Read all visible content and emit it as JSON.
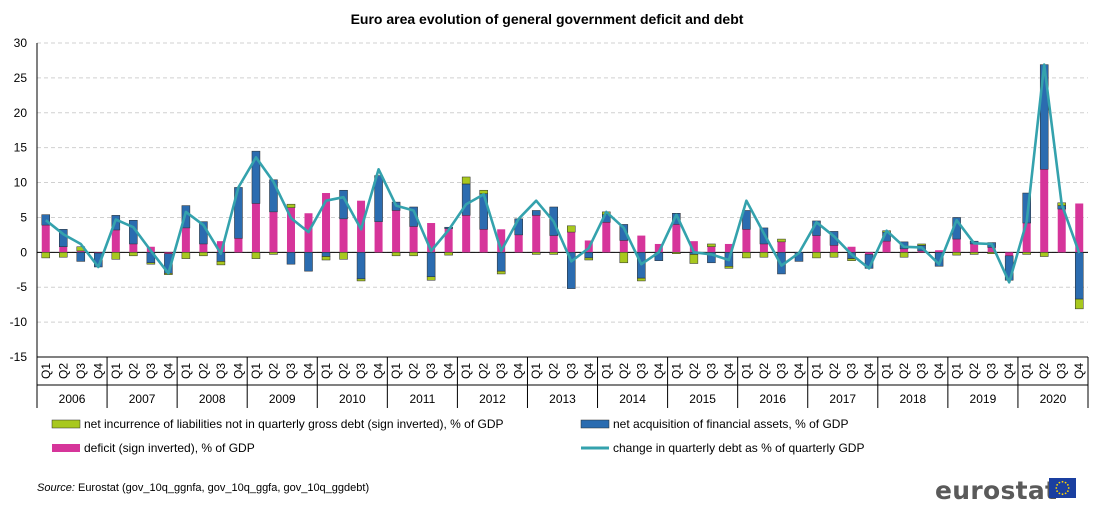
{
  "chart_data": {
    "type": "bar",
    "title": "Euro area evolution of general government deficit and debt",
    "xlabel": "",
    "ylabel": "",
    "ylim": [
      -15,
      30
    ],
    "yticks": [
      30,
      25,
      20,
      15,
      10,
      5,
      0,
      -5,
      -10,
      -15
    ],
    "grid": true,
    "legend_position": "bottom",
    "years": [
      "2006",
      "2007",
      "2008",
      "2009",
      "2010",
      "2011",
      "2012",
      "2013",
      "2014",
      "2015",
      "2016",
      "2017",
      "2018",
      "2019",
      "2020"
    ],
    "quarters": [
      "Q1",
      "Q2",
      "Q3",
      "Q4"
    ],
    "series": [
      {
        "name": "net incurrence of liabilities not in quarterly gross debt (sign inverted), % of GDP",
        "kind": "bar",
        "color": "#a8c81e",
        "values": [
          -0.8,
          -0.7,
          0.6,
          0.0,
          -1.0,
          -0.5,
          -0.2,
          -0.2,
          -0.9,
          -0.5,
          -0.5,
          0.0,
          -0.9,
          -0.3,
          0.5,
          0.0,
          -0.5,
          -1.0,
          -0.3,
          0.0,
          -0.5,
          -0.5,
          -0.5,
          -0.4,
          1.0,
          0.5,
          -0.4,
          0.0,
          -0.3,
          -0.3,
          0.9,
          -0.3,
          0.4,
          -1.5,
          -0.4,
          0.0,
          -0.2,
          -1.3,
          0.4,
          -0.3,
          -0.8,
          -0.7,
          0.4,
          0.0,
          -0.8,
          -0.7,
          -0.3,
          0.0,
          0.2,
          -0.7,
          0.2,
          0.0,
          -0.4,
          -0.3,
          -0.2,
          0.0,
          -0.3,
          -0.6,
          0.4,
          -1.4
        ]
      },
      {
        "name": "net acquisition of financial assets, % of GDP",
        "kind": "bar",
        "color": "#2b6cb0",
        "values": [
          1.5,
          2.5,
          -1.3,
          -2.0,
          2.1,
          3.4,
          -1.5,
          -2.8,
          3.2,
          3.2,
          -1.3,
          7.3,
          7.5,
          4.6,
          -1.7,
          -2.7,
          -0.6,
          4.1,
          -3.8,
          6.6,
          1.2,
          2.8,
          -3.5,
          0.2,
          4.5,
          5.1,
          -2.7,
          2.3,
          0.7,
          4.1,
          -5.2,
          -0.8,
          1.1,
          2.3,
          -3.7,
          -1.2,
          1.6,
          -0.3,
          -1.5,
          -2.0,
          2.7,
          2.3,
          -3.1,
          -1.3,
          2.1,
          2.0,
          -0.9,
          -2.0,
          1.3,
          1.0,
          0.8,
          -2.0,
          3.1,
          0.4,
          0.7,
          -3.5,
          4.3,
          15.0,
          0.5,
          -6.7
        ]
      },
      {
        "name": "deficit (sign inverted), % of GDP",
        "kind": "bar",
        "color": "#d6359a",
        "values": [
          3.9,
          0.8,
          0.2,
          -0.1,
          3.2,
          1.2,
          0.8,
          -0.2,
          3.5,
          1.2,
          1.6,
          2.0,
          7.0,
          5.8,
          6.4,
          5.6,
          8.5,
          4.8,
          7.4,
          4.4,
          6.0,
          3.7,
          4.2,
          3.4,
          5.3,
          3.3,
          3.3,
          2.5,
          5.3,
          2.4,
          2.9,
          1.7,
          4.3,
          1.7,
          2.4,
          1.2,
          4.0,
          1.6,
          0.8,
          1.2,
          3.3,
          1.2,
          1.5,
          0.0,
          2.4,
          1.0,
          0.8,
          -0.3,
          1.6,
          0.5,
          0.2,
          0.3,
          1.9,
          1.2,
          0.7,
          -0.5,
          4.2,
          11.9,
          6.2,
          7.0
        ]
      },
      {
        "name": "change in quarterly debt as % of quarterly GDP",
        "kind": "line",
        "color": "#34a2ad",
        "values": [
          4.6,
          2.6,
          1.2,
          -2.1,
          4.7,
          3.6,
          0.2,
          -3.0,
          5.8,
          3.9,
          -0.2,
          9.3,
          13.6,
          10.1,
          4.9,
          2.9,
          7.4,
          7.9,
          3.3,
          11.9,
          6.7,
          6.0,
          0.2,
          3.2,
          6.9,
          8.3,
          0.2,
          4.8,
          7.4,
          4.4,
          -1.3,
          0.6,
          5.8,
          3.5,
          -1.7,
          0.0,
          5.4,
          0.0,
          -0.3,
          -1.1,
          7.4,
          2.7,
          -1.9,
          -0.1,
          4.3,
          2.3,
          -0.3,
          -2.3,
          3.1,
          0.8,
          0.7,
          -1.7,
          4.6,
          1.3,
          1.2,
          -4.3,
          4.4,
          26.9,
          6.9,
          -0.1
        ]
      }
    ]
  },
  "legend": [
    {
      "label": "net incurrence of liabilities not in quarterly gross debt (sign inverted), % of GDP",
      "color": "#a8c81e",
      "kind": "bar"
    },
    {
      "label": "net acquisition of financial assets, % of GDP",
      "color": "#2b6cb0",
      "kind": "bar"
    },
    {
      "label": "deficit (sign inverted), % of GDP",
      "color": "#d6359a",
      "kind": "bar"
    },
    {
      "label": "change in quarterly debt as % of quarterly GDP",
      "color": "#34a2ad",
      "kind": "line"
    }
  ],
  "source": {
    "prefix": "Source:",
    "text": " Eurostat (gov_10q_ggnfa, gov_10q_ggfa, gov_10q_ggdebt)"
  },
  "logo": {
    "text": "eurostat",
    "flag_color": "#1a3fa0",
    "star_color": "#ffd500"
  }
}
